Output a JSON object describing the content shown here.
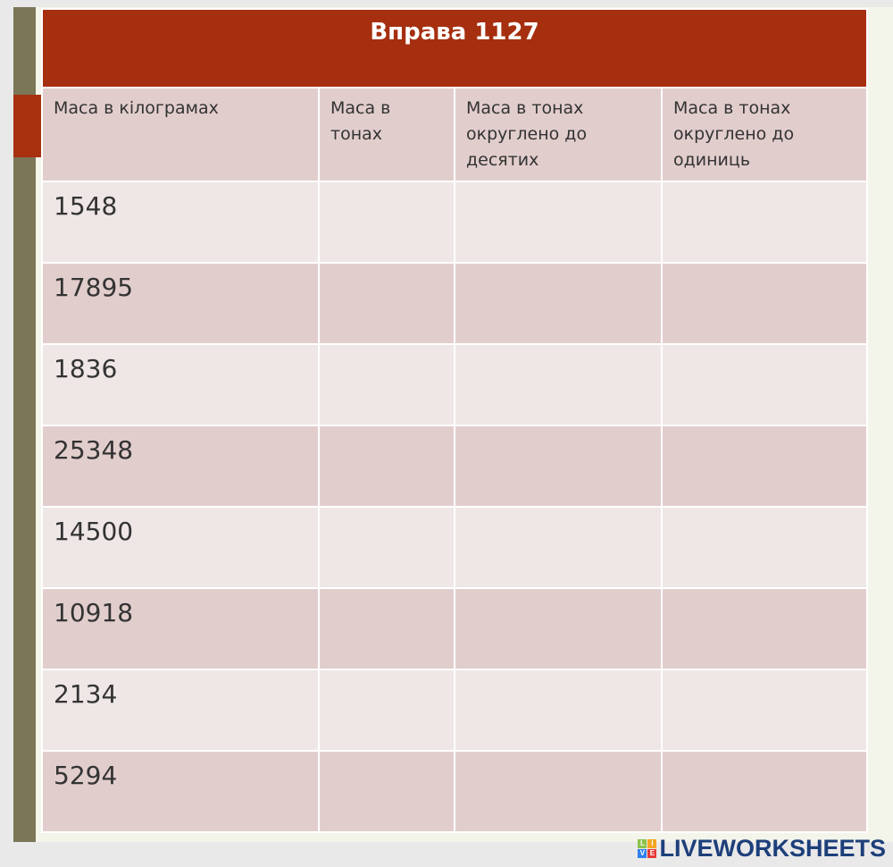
{
  "title": "Вправа 1127",
  "columns": [
    "Маса в кілограмах",
    "Маса в тонах",
    "Маса в тонах округлено до десятих",
    "Маса в тонах округлено до одиниць"
  ],
  "rows": [
    "1548",
    "17895",
    "1836",
    "25348",
    "14500",
    "10918",
    "2134",
    "5294"
  ],
  "brand": {
    "text": "LIVEWORKSHEETS",
    "logo_letters": [
      "L",
      "I",
      "V",
      "E"
    ],
    "logo_colors": [
      "#8bc34a",
      "#f5a623",
      "#2f80ed",
      "#e53935"
    ]
  }
}
